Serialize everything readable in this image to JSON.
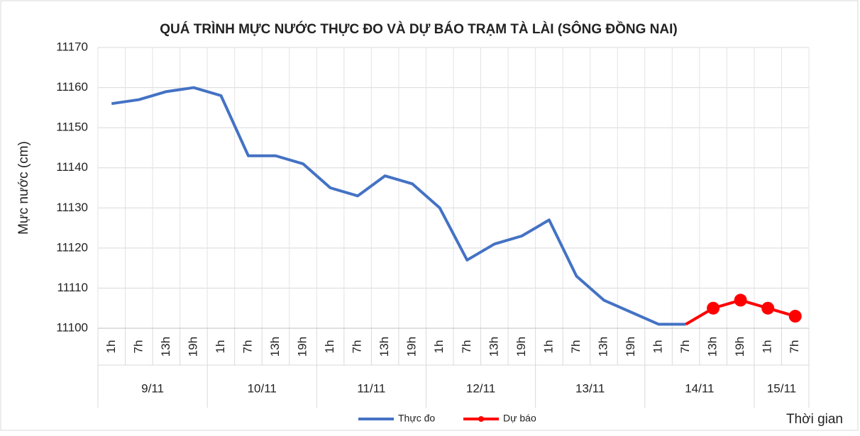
{
  "chart_data": {
    "type": "line",
    "title": "QUÁ TRÌNH MỰC NƯỚC THỰC ĐO VÀ DỰ BÁO TRẠM TÀ LÀI (SÔNG ĐỒNG NAI)",
    "y_label": "Mực nước (cm)",
    "x_label": "Thời gian",
    "categories": [
      "1h",
      "7h",
      "13h",
      "19h",
      "1h",
      "7h",
      "13h",
      "19h",
      "1h",
      "7h",
      "13h",
      "19h",
      "1h",
      "7h",
      "13h",
      "19h",
      "1h",
      "7h",
      "13h",
      "19h",
      "1h",
      "7h",
      "13h",
      "19h",
      "1h",
      "7h"
    ],
    "groups": [
      {
        "label": "9/11",
        "span": 4
      },
      {
        "label": "10/11",
        "span": 4
      },
      {
        "label": "11/11",
        "span": 4
      },
      {
        "label": "12/11",
        "span": 4
      },
      {
        "label": "13/11",
        "span": 4
      },
      {
        "label": "14/11",
        "span": 4
      },
      {
        "label": "15/11",
        "span": 2
      }
    ],
    "series": [
      {
        "name": "Thực đo",
        "color": "#4472c4",
        "markers": false,
        "values": [
          11156,
          11157,
          11159,
          11160,
          11158,
          11143,
          11143,
          11141,
          11135,
          11133,
          11138,
          11136,
          11130,
          11117,
          11121,
          11123,
          11127,
          11113,
          11107,
          11104,
          11101,
          11101,
          null,
          null,
          null,
          null
        ]
      },
      {
        "name": "Dự báo",
        "color": "#ff0000",
        "markers": true,
        "values": [
          null,
          null,
          null,
          null,
          null,
          null,
          null,
          null,
          null,
          null,
          null,
          null,
          null,
          null,
          null,
          null,
          null,
          null,
          null,
          null,
          null,
          11101,
          11105,
          11107,
          11105,
          11103
        ]
      }
    ],
    "ylim": [
      11100,
      11170
    ],
    "yticks": [
      11100,
      11110,
      11120,
      11130,
      11140,
      11150,
      11160,
      11170
    ],
    "grid": true,
    "legend": "bottom"
  }
}
